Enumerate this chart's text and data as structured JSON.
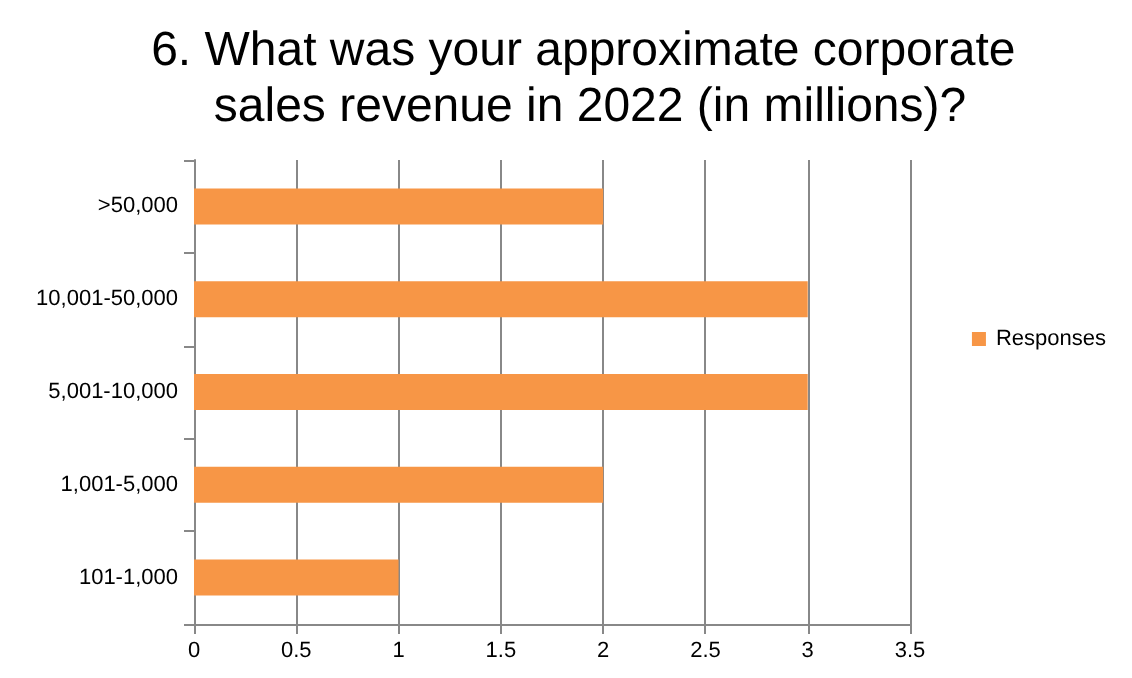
{
  "chart_data": {
    "type": "bar",
    "orientation": "horizontal",
    "title": "6. What was your approximate corporate sales revenue in 2022 (in millions)?",
    "categories": [
      ">50,000",
      "10,001-50,000",
      "5,001-10,000",
      "1,001-5,000",
      "101-1,000"
    ],
    "series": [
      {
        "name": "Responses",
        "color": "#f79646",
        "values": [
          2,
          3,
          3,
          2,
          1
        ]
      }
    ],
    "xlim": [
      0,
      3.5
    ],
    "xticks": [
      0,
      0.5,
      1,
      1.5,
      2,
      2.5,
      3,
      3.5
    ],
    "grid": "x",
    "legend": "right"
  }
}
